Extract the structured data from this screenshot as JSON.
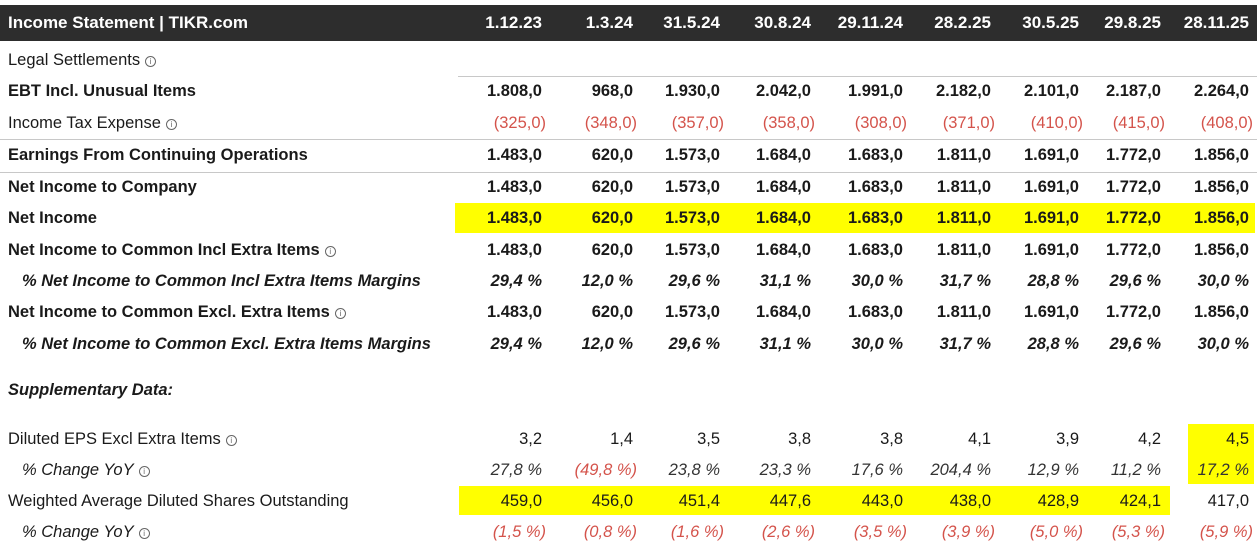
{
  "header": {
    "title": "Income Statement | TIKR.com",
    "periods": [
      "1.12.23",
      "1.3.24",
      "31.5.24",
      "30.8.24",
      "29.11.24",
      "28.2.25",
      "30.5.25",
      "29.8.25",
      "28.11.25"
    ]
  },
  "rows": {
    "legal": {
      "label": "Legal Settlements"
    },
    "ebt": {
      "label": "EBT Incl. Unusual Items",
      "values": [
        "1.808,0",
        "968,0",
        "1.930,0",
        "2.042,0",
        "1.991,0",
        "2.182,0",
        "2.101,0",
        "2.187,0",
        "2.264,0"
      ]
    },
    "tax": {
      "label": "Income Tax Expense",
      "values": [
        "(325,0)",
        "(348,0)",
        "(357,0)",
        "(358,0)",
        "(308,0)",
        "(371,0)",
        "(410,0)",
        "(415,0)",
        "(408,0)"
      ]
    },
    "cont": {
      "label": "Earnings From Continuing Operations",
      "values": [
        "1.483,0",
        "620,0",
        "1.573,0",
        "1.684,0",
        "1.683,0",
        "1.811,0",
        "1.691,0",
        "1.772,0",
        "1.856,0"
      ]
    },
    "nic": {
      "label": "Net Income to Company",
      "values": [
        "1.483,0",
        "620,0",
        "1.573,0",
        "1.684,0",
        "1.683,0",
        "1.811,0",
        "1.691,0",
        "1.772,0",
        "1.856,0"
      ]
    },
    "ni": {
      "label": "Net Income",
      "values": [
        "1.483,0",
        "620,0",
        "1.573,0",
        "1.684,0",
        "1.683,0",
        "1.811,0",
        "1.691,0",
        "1.772,0",
        "1.856,0"
      ]
    },
    "nicincl": {
      "label": "Net Income to Common Incl Extra Items",
      "values": [
        "1.483,0",
        "620,0",
        "1.573,0",
        "1.684,0",
        "1.683,0",
        "1.811,0",
        "1.691,0",
        "1.772,0",
        "1.856,0"
      ]
    },
    "marginincl": {
      "label": "% Net Income to Common Incl Extra Items Margins",
      "values": [
        "29,4 %",
        "12,0 %",
        "29,6 %",
        "31,1 %",
        "30,0 %",
        "31,7 %",
        "28,8 %",
        "29,6 %",
        "30,0 %"
      ]
    },
    "nicexcl": {
      "label": "Net Income to Common Excl. Extra Items",
      "values": [
        "1.483,0",
        "620,0",
        "1.573,0",
        "1.684,0",
        "1.683,0",
        "1.811,0",
        "1.691,0",
        "1.772,0",
        "1.856,0"
      ]
    },
    "marginexcl": {
      "label": "% Net Income to Common Excl. Extra Items Margins",
      "values": [
        "29,4 %",
        "12,0 %",
        "29,6 %",
        "31,1 %",
        "30,0 %",
        "31,7 %",
        "28,8 %",
        "29,6 %",
        "30,0 %"
      ]
    },
    "supp": {
      "label": "Supplementary Data:"
    },
    "eps": {
      "label": "Diluted EPS Excl Extra Items",
      "values": [
        "3,2",
        "1,4",
        "3,5",
        "3,8",
        "3,8",
        "4,1",
        "3,9",
        "4,2",
        "4,5"
      ]
    },
    "epsyoy": {
      "label": "% Change YoY",
      "values": [
        "27,8 %",
        "(49,8 %)",
        "23,8 %",
        "23,3 %",
        "17,6 %",
        "204,4 %",
        "12,9 %",
        "11,2 %",
        "17,2 %"
      ]
    },
    "shares": {
      "label": "Weighted Average Diluted Shares Outstanding",
      "values": [
        "459,0",
        "456,0",
        "451,4",
        "447,6",
        "443,0",
        "438,0",
        "428,9",
        "424,1",
        "417,0"
      ]
    },
    "sharesyoy": {
      "label": "% Change YoY",
      "values": [
        "(1,5 %)",
        "(0,8 %)",
        "(1,6 %)",
        "(2,6 %)",
        "(3,5 %)",
        "(3,9 %)",
        "(5,0 %)",
        "(5,3 %)",
        "(5,9 %)"
      ]
    }
  },
  "info_icon": {
    "name": "info-icon",
    "glyph": "i"
  },
  "colors": {
    "header_bg": "#2d2d2d",
    "highlight": "#ffff00",
    "negative": "#d4534b"
  }
}
